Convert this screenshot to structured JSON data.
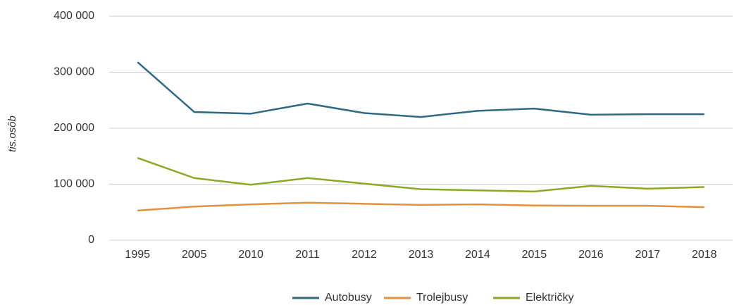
{
  "chart_data": {
    "type": "line",
    "y_label": "tis.osôb",
    "categories": [
      "1995",
      "2005",
      "2010",
      "2011",
      "2012",
      "2013",
      "2014",
      "2015",
      "2016",
      "2017",
      "2018"
    ],
    "series": [
      {
        "name": "Autobusy",
        "color": "#2e6a84",
        "values": [
          318000,
          229000,
          226000,
          244000,
          227000,
          220000,
          231000,
          235000,
          224000,
          225000,
          225000
        ]
      },
      {
        "name": "Trolejbusy",
        "color": "#e3913f",
        "values": [
          53000,
          60000,
          64000,
          67000,
          65000,
          63000,
          64000,
          62000,
          61500,
          61500,
          59000
        ]
      },
      {
        "name": "Električky",
        "color": "#8aaa22",
        "values": [
          147000,
          111000,
          99000,
          111000,
          101000,
          91000,
          89000,
          87000,
          97000,
          92000,
          95000
        ]
      }
    ],
    "ylim": [
      0,
      400000
    ],
    "yticks": [
      0,
      {
        "value": 100000,
        "label": "100 000"
      },
      {
        "value": 200000,
        "label": "200 000"
      },
      {
        "value": 300000,
        "label": "300 000"
      },
      {
        "value": 400000,
        "label": "400 000"
      }
    ],
    "grid": true,
    "legend": "bottom"
  }
}
